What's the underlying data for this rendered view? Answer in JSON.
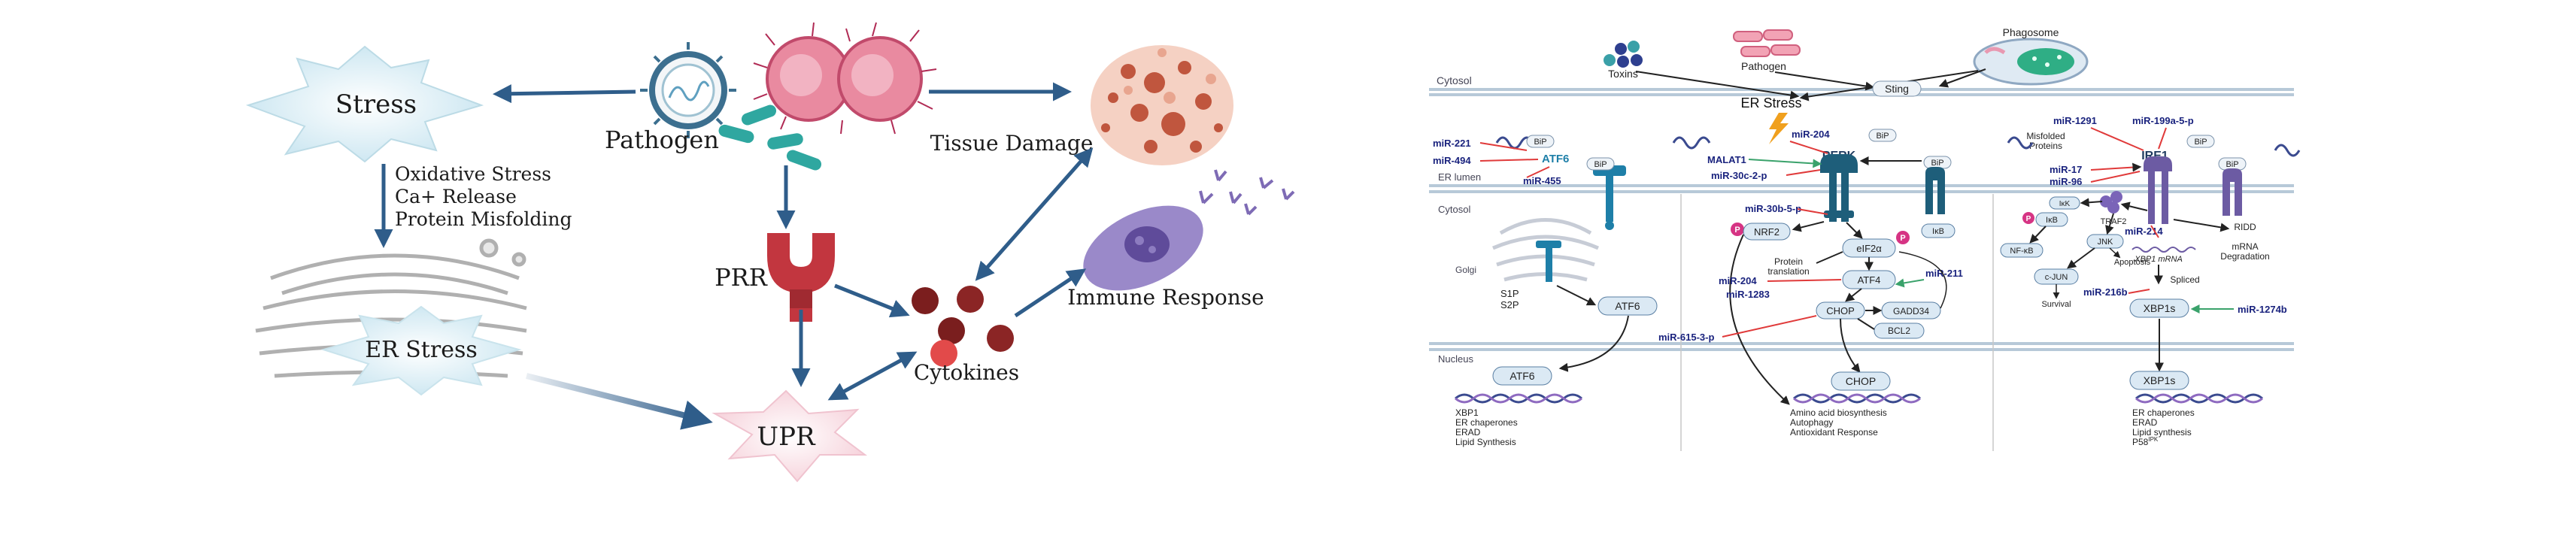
{
  "left_panel": {
    "stress": "Stress",
    "pathogen": "Pathogen",
    "tissue_damage": "Tissue Damage",
    "causes": [
      "Oxidative Stress",
      "Ca+ Release",
      "Protein Misfolding"
    ],
    "er_stress": "ER Stress",
    "prr": "PRR",
    "cytokines": "Cytokines",
    "immune_response": "Immune Response",
    "upr": "UPR"
  },
  "right_panel": {
    "toxins": "Toxins",
    "pathogen": "Pathogen",
    "phagosome": "Phagosome",
    "cytosol_top": "Cytosol",
    "sting": "Sting",
    "er_stress": "ER Stress",
    "er_lumen": "ER lumen",
    "cytosol_mid": "Cytosol",
    "nucleus": "Nucleus",
    "golgi": "Golgi",
    "bip": "BiP",
    "atf6_label": "ATF6",
    "perk": "PERK",
    "ire1": "IRE1",
    "misfolded": [
      "Misfolded",
      "Proteins"
    ],
    "malat1": "MALAT1",
    "s1p": "S1P",
    "s2p": "S2P",
    "atf6_cyto": "ATF6",
    "atf6_nuc": "ATF6",
    "nrf2": "NRF2",
    "eif2a": "eIF2α",
    "protein_translation": [
      "Protein",
      "translation"
    ],
    "atf4": "ATF4",
    "chop": "CHOP",
    "gadd34": "GADD34",
    "bcl2": "BCL2",
    "ikb_top": "IκB",
    "chop_nuc": "CHOP",
    "ikk": "IκK",
    "ikb": "IκB",
    "traf2": "TRAF2",
    "nfkb": "NF-κB",
    "jnk": "JNK",
    "apoptosis": "Apoptosis",
    "cjun": "c-JUN",
    "survival": "Survival",
    "ridd": "RIDD",
    "mrna_degradation": [
      "mRNA",
      "Degradation"
    ],
    "xbp1_mrna": "XBP1 mRNA",
    "spliced": "Spliced",
    "xbp1s": "XBP1s",
    "xbp1s_nuc": "XBP1s",
    "p_badge": "P",
    "mirnas": {
      "m221": "miR-221",
      "m494": "miR-494",
      "m455": "miR-455",
      "m204a": "miR-204",
      "m30c": "miR-30c-2-p",
      "m1291": "miR-1291",
      "m199a": "miR-199a-5-p",
      "m17": "miR-17",
      "m96": "miR-96",
      "m30b": "miR-30b-5-p",
      "m204b": "miR-204",
      "m1283": "miR-1283",
      "m211": "miR-211",
      "m615": "miR-615-3-p",
      "m214": "miR-214",
      "m216b": "miR-216b",
      "m1274b": "miR-1274b"
    },
    "atf6_targets": [
      "XBP1",
      "ER chaperones",
      "ERAD",
      "Lipid Synthesis"
    ],
    "chop_targets": [
      "Amino acid biosynthesis",
      "Autophagy",
      "Antioxidant Response"
    ],
    "xbp1_targets": [
      "ER chaperones",
      "ERAD",
      "Lipid synthesis",
      "P58"
    ],
    "p58_superscript": "IPK"
  }
}
